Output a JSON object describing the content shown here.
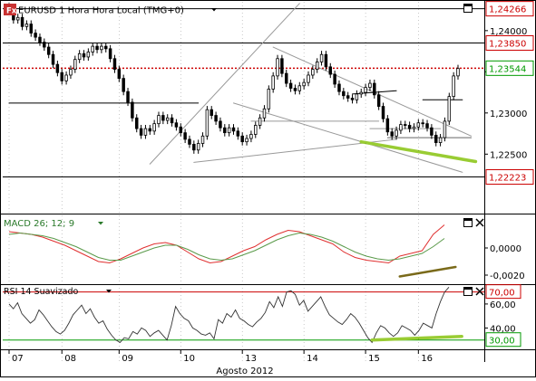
{
  "colors": {
    "candle_up": "#ffffff",
    "candle_down": "#000000",
    "resistance_red": "#cc0000",
    "current_price_green": "#009900",
    "macd_red": "#e03030",
    "macd_green": "#5a9a4a",
    "divergence_lime": "#99cc33",
    "divergence_olive": "#7a6a1a",
    "rsi_line": "#333333",
    "rsi_overbought": "#cc0000",
    "rsi_oversold": "#009900"
  },
  "icons": {
    "symbol_badge": "fx-badge-icon",
    "maximize": "maximize-icon",
    "close": "close-icon",
    "dropdown": "dropdown-arrow-icon"
  },
  "chart_data": [
    {
      "type": "candlestick",
      "title": "EURUSD 1 Hora Hora Local (TMG+0)",
      "badge": "Fx",
      "ylim": [
        1.218,
        1.2435
      ],
      "yticks": [
        1.24,
        1.235,
        1.23,
        1.225
      ],
      "ytick_labels": [
        "1,24000",
        "",
        "1,23000",
        "1,22500"
      ],
      "price_boxes": [
        {
          "value": 1.24266,
          "label": "1,24266"
        },
        {
          "value": 1.2385,
          "label": "1,23850"
        },
        {
          "value": 1.23544,
          "label": "1,23544",
          "highlight": true
        },
        {
          "value": 1.22223,
          "label": "1,22223"
        }
      ],
      "horizontal_lines": [
        {
          "value": 1.24266,
          "style": "solid"
        },
        {
          "value": 1.2385,
          "style": "solid"
        },
        {
          "value": 1.23544,
          "style": "dotted-red"
        },
        {
          "value": 1.22223,
          "style": "solid"
        }
      ],
      "series": [
        {
          "name": "",
          "close": [
            1.2423,
            1.2413,
            1.2416,
            1.2405,
            1.2408,
            1.2397,
            1.2392,
            1.2386,
            1.238,
            1.2371,
            1.2359,
            1.2349,
            1.2339,
            1.2346,
            1.2353,
            1.2365,
            1.2372,
            1.2368,
            1.2374,
            1.2381,
            1.2377,
            1.2381,
            1.2378,
            1.2366,
            1.2353,
            1.2342,
            1.2326,
            1.2313,
            1.2294,
            1.2281,
            1.2273,
            1.2281,
            1.2278,
            1.2287,
            1.2297,
            1.2291,
            1.2294,
            1.2288,
            1.2283,
            1.2276,
            1.2268,
            1.2262,
            1.2255,
            1.2263,
            1.2272,
            1.2304,
            1.2297,
            1.229,
            1.2282,
            1.2276,
            1.2282,
            1.2278,
            1.2272,
            1.2265,
            1.2269,
            1.2274,
            1.2285,
            1.2294,
            1.2305,
            1.2329,
            1.2345,
            1.2366,
            1.2348,
            1.2336,
            1.233,
            1.2327,
            1.2333,
            1.2337,
            1.2346,
            1.2353,
            1.2362,
            1.2371,
            1.2356,
            1.2347,
            1.2335,
            1.2326,
            1.2321,
            1.2318,
            1.2316,
            1.2323,
            1.2325,
            1.2331,
            1.2336,
            1.2322,
            1.2308,
            1.2293,
            1.2277,
            1.2272,
            1.2279,
            1.2286,
            1.2285,
            1.2281,
            1.2283,
            1.2288,
            1.2287,
            1.2282,
            1.2273,
            1.2264,
            1.227,
            1.229,
            1.232,
            1.2345,
            1.2354
          ]
        }
      ],
      "annotations": [
        {
          "type": "trendline",
          "from": [
            0,
            1.2312
          ],
          "to": [
            43,
            1.2312
          ],
          "color": "#000000"
        },
        {
          "type": "trendline",
          "from": [
            32,
            1.2238
          ],
          "to": [
            66,
            1.2433
          ],
          "color": "#999999"
        },
        {
          "type": "trendline",
          "from": [
            42,
            1.224
          ],
          "to": [
            88,
            1.2268
          ],
          "color": "#999999"
        },
        {
          "type": "trendline",
          "from": [
            60,
            1.238
          ],
          "to": [
            105,
            1.2272
          ],
          "color": "#999999"
        },
        {
          "type": "trendline",
          "from": [
            51,
            1.2312
          ],
          "to": [
            103,
            1.2228
          ],
          "color": "#999999"
        },
        {
          "type": "trendline",
          "from": [
            55,
            1.229
          ],
          "to": [
            84,
            1.229
          ],
          "color": "#999999"
        },
        {
          "type": "trendline",
          "from": [
            82,
            1.2281
          ],
          "to": [
            98,
            1.2281
          ],
          "color": "#999999"
        },
        {
          "type": "trendline",
          "from": [
            86,
            1.227
          ],
          "to": [
            105,
            1.227
          ],
          "color": "#666666"
        },
        {
          "type": "trendline",
          "from": [
            78,
            1.2323
          ],
          "to": [
            88,
            1.2327
          ],
          "color": "#000000"
        },
        {
          "type": "trendline",
          "from": [
            94,
            1.2316
          ],
          "to": [
            103,
            1.2316
          ],
          "color": "#000000"
        },
        {
          "type": "divergence",
          "from": [
            80,
            1.2265
          ],
          "to": [
            106,
            1.2241
          ],
          "color": "#99cc33"
        }
      ]
    },
    {
      "type": "line",
      "title": "MACD 26; 12; 9",
      "ylim": [
        -0.0026,
        0.0024
      ],
      "yticks": [
        0.0,
        -0.002
      ],
      "ytick_labels": [
        "0,0000",
        "-0,0020"
      ],
      "series": [
        {
          "name": "",
          "color": "#e03030",
          "values": [
            0.0012,
            0.0011,
            0.001,
            0.0008,
            0.0005,
            0.0002,
            -0.0002,
            -0.0006,
            -0.001,
            -0.0011,
            -0.0008,
            -0.0004,
            0.0,
            0.0003,
            0.0004,
            0.0002,
            -0.0003,
            -0.0008,
            -0.0011,
            -0.001,
            -0.0006,
            -0.0002,
            0.0001,
            0.0006,
            0.001,
            0.0013,
            0.0012,
            0.0009,
            0.0006,
            0.0003,
            -0.0003,
            -0.0007,
            -0.0009,
            -0.001,
            -0.0011,
            -0.0006,
            -0.0004,
            -0.0002,
            0.001,
            0.0017
          ]
        },
        {
          "name": "",
          "color": "#5a9a4a",
          "values": [
            0.001,
            0.0011,
            0.001,
            0.0009,
            0.0007,
            0.0004,
            0.0001,
            -0.0003,
            -0.0007,
            -0.0009,
            -0.0009,
            -0.0006,
            -0.0003,
            0.0,
            0.0002,
            0.0002,
            -0.0001,
            -0.0005,
            -0.0008,
            -0.0009,
            -0.0008,
            -0.0005,
            -0.0002,
            0.0002,
            0.0006,
            0.0009,
            0.0011,
            0.001,
            0.0008,
            0.0005,
            0.0001,
            -0.0003,
            -0.0006,
            -0.0008,
            -0.0009,
            -0.0008,
            -0.0006,
            -0.0004,
            0.0001,
            0.0007
          ]
        }
      ],
      "annotations": [
        {
          "type": "divergence",
          "from": [
            35,
            -0.0021
          ],
          "to": [
            40,
            -0.0014
          ],
          "color": "#7a6a1a"
        }
      ]
    },
    {
      "type": "line",
      "title": "RSI 14 Suavizado",
      "ylim": [
        23,
        75
      ],
      "yticks": [
        60,
        40
      ],
      "ytick_labels": [
        "60,00",
        "40,00"
      ],
      "levels": [
        {
          "value": 70,
          "label": "70,00",
          "color": "#cc0000"
        },
        {
          "value": 30,
          "label": "30,00",
          "color": "#009900"
        }
      ],
      "series": [
        {
          "name": "",
          "color": "#333333",
          "values": [
            60,
            56,
            61,
            52,
            48,
            44,
            47,
            55,
            51,
            46,
            41,
            37,
            35,
            38,
            44,
            51,
            55,
            59,
            52,
            56,
            49,
            44,
            46,
            39,
            34,
            30,
            28,
            32,
            31,
            37,
            35,
            40,
            38,
            33,
            36,
            38,
            34,
            30,
            42,
            58,
            52,
            48,
            46,
            40,
            38,
            35,
            34,
            36,
            31,
            47,
            44,
            52,
            49,
            55,
            48,
            46,
            43,
            41,
            45,
            48,
            53,
            62,
            57,
            66,
            58,
            70,
            71,
            68,
            59,
            63,
            54,
            58,
            62,
            66,
            58,
            51,
            48,
            45,
            43,
            47,
            52,
            49,
            44,
            38,
            32,
            28,
            36,
            42,
            40,
            36,
            33,
            36,
            42,
            40,
            38,
            34,
            38,
            44,
            42,
            40,
            52,
            62,
            70,
            74
          ]
        }
      ],
      "annotations": [
        {
          "type": "divergence",
          "from": [
            85,
            30
          ],
          "to": [
            106,
            33
          ],
          "color": "#99cc33"
        }
      ]
    }
  ],
  "x_axis": {
    "labels": [
      "07",
      "08",
      "09",
      "10",
      "13",
      "14",
      "15",
      "16"
    ],
    "positions": [
      0,
      12,
      25,
      39,
      53,
      67,
      81,
      93
    ],
    "title": "Agosto 2012"
  }
}
